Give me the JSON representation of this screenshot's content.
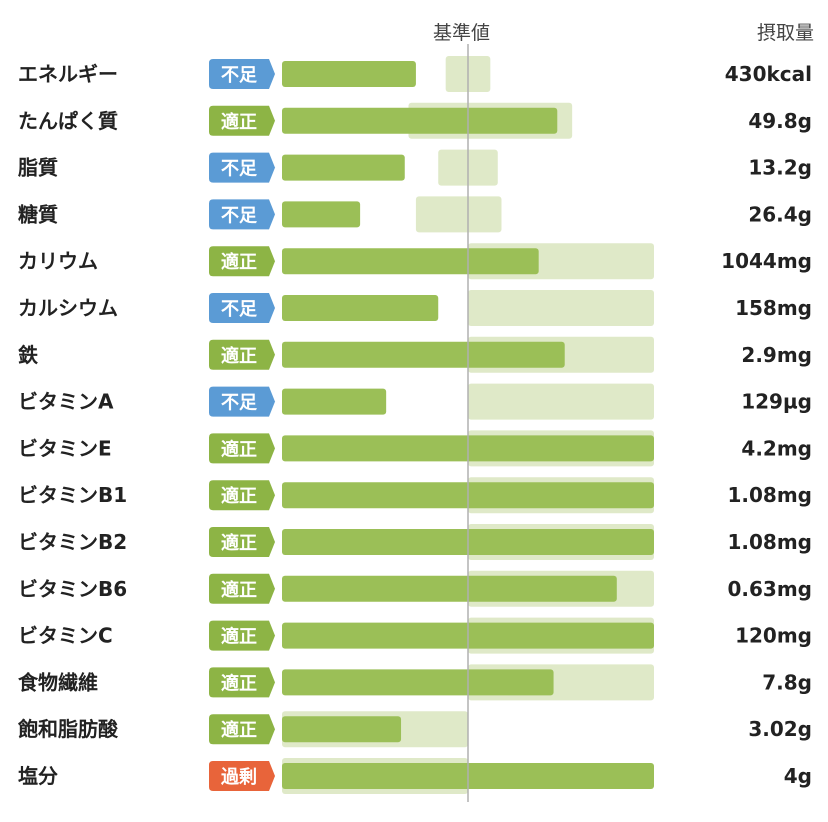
{
  "header": {
    "reference_label": "基準値",
    "intake_label": "摂取量"
  },
  "colors": {
    "badge_不足": "#5b9bd5",
    "badge_適正": "#8db445",
    "badge_過剰": "#e8643a",
    "bar": "#9bbf57",
    "range": "#dfe9c8",
    "ref_line": "#b0b0b0"
  },
  "chart_data": {
    "type": "bar",
    "orientation": "horizontal",
    "note_scale": "fraction of chart width; 0.5 = 基準値",
    "rows": [
      {
        "name": "エネルギー",
        "status": "不足",
        "value": "430kcal",
        "bar": 0.36,
        "range": [
          0.44,
          0.56
        ]
      },
      {
        "name": "たんぱく質",
        "status": "適正",
        "value": "49.8g",
        "bar": 0.74,
        "range": [
          0.34,
          0.78
        ]
      },
      {
        "name": "脂質",
        "status": "不足",
        "value": "13.2g",
        "bar": 0.33,
        "range": [
          0.42,
          0.58
        ]
      },
      {
        "name": "糖質",
        "status": "不足",
        "value": "26.4g",
        "bar": 0.21,
        "range": [
          0.36,
          0.59
        ]
      },
      {
        "name": "カリウム",
        "status": "適正",
        "value": "1044mg",
        "bar": 0.69,
        "range": [
          0.5,
          1.0
        ]
      },
      {
        "name": "カルシウム",
        "status": "不足",
        "value": "158mg",
        "bar": 0.42,
        "range": [
          0.5,
          1.0
        ]
      },
      {
        "name": "鉄",
        "status": "適正",
        "value": "2.9mg",
        "bar": 0.76,
        "range": [
          0.5,
          1.0
        ]
      },
      {
        "name": "ビタミンA",
        "status": "不足",
        "value": "129µg",
        "bar": 0.28,
        "range": [
          0.5,
          1.0
        ]
      },
      {
        "name": "ビタミンE",
        "status": "適正",
        "value": "4.2mg",
        "bar": 1.0,
        "range": [
          0.5,
          1.0
        ]
      },
      {
        "name": "ビタミンB1",
        "status": "適正",
        "value": "1.08mg",
        "bar": 1.0,
        "range": [
          0.5,
          1.0
        ]
      },
      {
        "name": "ビタミンB2",
        "status": "適正",
        "value": "1.08mg",
        "bar": 1.0,
        "range": [
          0.5,
          1.0
        ]
      },
      {
        "name": "ビタミンB6",
        "status": "適正",
        "value": "0.63mg",
        "bar": 0.9,
        "range": [
          0.5,
          1.0
        ]
      },
      {
        "name": "ビタミンC",
        "status": "適正",
        "value": "120mg",
        "bar": 1.0,
        "range": [
          0.5,
          1.0
        ]
      },
      {
        "name": "食物繊維",
        "status": "適正",
        "value": "7.8g",
        "bar": 0.73,
        "range": [
          0.5,
          1.0
        ]
      },
      {
        "name": "飽和脂肪酸",
        "status": "適正",
        "value": "3.02g",
        "bar": 0.32,
        "range": [
          0.0,
          0.5
        ]
      },
      {
        "name": "塩分",
        "status": "過剰",
        "value": "4g",
        "bar": 1.0,
        "range": [
          0.0,
          0.5
        ]
      }
    ]
  }
}
